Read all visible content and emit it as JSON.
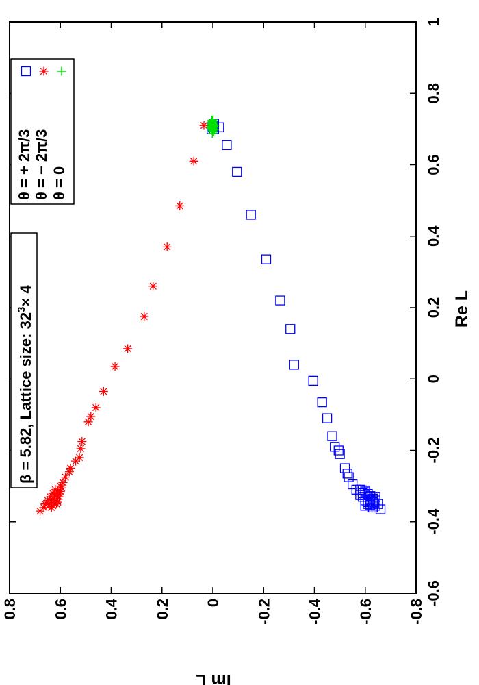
{
  "chart_data": {
    "type": "scatter",
    "orientation": "rotated-90-ccw",
    "xlabel": "Re L",
    "ylabel": "Im L",
    "xlim": [
      -0.6,
      1.0
    ],
    "ylim": [
      -0.8,
      0.8
    ],
    "xticks": [
      -0.6,
      -0.4,
      -0.2,
      0,
      0.2,
      0.4,
      0.6,
      0.8,
      1
    ],
    "yticks": [
      -0.8,
      -0.6,
      -0.4,
      -0.2,
      0,
      0.2,
      0.4,
      0.6,
      0.8
    ],
    "xtick_labels": [
      "-0.6",
      "-0.4",
      "-0.2",
      "0",
      "0.2",
      "0.4",
      "0.6",
      "0.8",
      "1"
    ],
    "ytick_labels": [
      "-0.8",
      "-0.6",
      "-0.4",
      "-0.2",
      "0",
      "0.2",
      "0.4",
      "0.6",
      "0.8"
    ],
    "annotation": {
      "prefix": "β = 5.82, Lattice size: 32",
      "sup": "3",
      "suffix": "× 4"
    },
    "legend_position": "top-right",
    "series": [
      {
        "name": "θ = + 2π/3",
        "marker": "square",
        "color": "#0000ff",
        "points": [
          [
            -0.365,
            -0.66
          ],
          [
            -0.355,
            -0.64
          ],
          [
            -0.35,
            -0.65
          ],
          [
            -0.345,
            -0.63
          ],
          [
            -0.34,
            -0.64
          ],
          [
            -0.338,
            -0.62
          ],
          [
            -0.335,
            -0.63
          ],
          [
            -0.33,
            -0.61
          ],
          [
            -0.328,
            -0.62
          ],
          [
            -0.325,
            -0.6
          ],
          [
            -0.322,
            -0.61
          ],
          [
            -0.32,
            -0.59
          ],
          [
            -0.318,
            -0.6
          ],
          [
            -0.315,
            -0.6
          ],
          [
            -0.312,
            -0.59
          ],
          [
            -0.31,
            -0.58
          ],
          [
            -0.33,
            -0.64
          ],
          [
            -0.345,
            -0.61
          ],
          [
            -0.352,
            -0.62
          ],
          [
            -0.34,
            -0.6
          ],
          [
            -0.36,
            -0.63
          ],
          [
            -0.355,
            -0.6
          ],
          [
            -0.35,
            -0.61
          ],
          [
            -0.325,
            -0.58
          ],
          [
            -0.33,
            -0.59
          ],
          [
            -0.342,
            -0.62
          ],
          [
            -0.348,
            -0.635
          ],
          [
            -0.31,
            -0.565
          ],
          [
            -0.295,
            -0.55
          ],
          [
            -0.275,
            -0.535
          ],
          [
            -0.265,
            -0.53
          ],
          [
            -0.25,
            -0.52
          ],
          [
            -0.21,
            -0.5
          ],
          [
            -0.2,
            -0.495
          ],
          [
            -0.19,
            -0.48
          ],
          [
            -0.16,
            -0.47
          ],
          [
            -0.11,
            -0.45
          ],
          [
            -0.065,
            -0.43
          ],
          [
            -0.005,
            -0.395
          ],
          [
            0.04,
            -0.32
          ],
          [
            0.14,
            -0.305
          ],
          [
            0.22,
            -0.265
          ],
          [
            0.335,
            -0.21
          ],
          [
            0.46,
            -0.15
          ],
          [
            0.58,
            -0.095
          ],
          [
            0.655,
            -0.055
          ],
          [
            0.705,
            -0.025
          ],
          [
            0.7,
            -0.005
          ],
          [
            0.705,
            0.0
          ],
          [
            0.71,
            0.0
          ],
          [
            0.715,
            -0.005
          ],
          [
            0.7,
            0.005
          ]
        ]
      },
      {
        "name": "θ = − 2π/3",
        "marker": "star",
        "color": "#ff0000",
        "points": [
          [
            -0.37,
            0.68
          ],
          [
            -0.36,
            0.665
          ],
          [
            -0.355,
            0.645
          ],
          [
            -0.35,
            0.66
          ],
          [
            -0.345,
            0.635
          ],
          [
            -0.34,
            0.65
          ],
          [
            -0.335,
            0.625
          ],
          [
            -0.33,
            0.64
          ],
          [
            -0.325,
            0.62
          ],
          [
            -0.32,
            0.63
          ],
          [
            -0.318,
            0.61
          ],
          [
            -0.315,
            0.6
          ],
          [
            -0.31,
            0.62
          ],
          [
            -0.305,
            0.595
          ],
          [
            -0.3,
            0.6
          ],
          [
            -0.34,
            0.62
          ],
          [
            -0.345,
            0.61
          ],
          [
            -0.33,
            0.605
          ],
          [
            -0.355,
            0.63
          ],
          [
            -0.35,
            0.615
          ],
          [
            -0.32,
            0.605
          ],
          [
            -0.36,
            0.635
          ],
          [
            -0.338,
            0.63
          ],
          [
            -0.328,
            0.615
          ],
          [
            -0.29,
            0.59
          ],
          [
            -0.275,
            0.58
          ],
          [
            -0.26,
            0.565
          ],
          [
            -0.25,
            0.56
          ],
          [
            -0.23,
            0.54
          ],
          [
            -0.22,
            0.525
          ],
          [
            -0.195,
            0.52
          ],
          [
            -0.175,
            0.515
          ],
          [
            -0.12,
            0.49
          ],
          [
            -0.105,
            0.48
          ],
          [
            -0.08,
            0.46
          ],
          [
            -0.035,
            0.43
          ],
          [
            0.035,
            0.385
          ],
          [
            0.085,
            0.335
          ],
          [
            0.175,
            0.27
          ],
          [
            0.26,
            0.235
          ],
          [
            0.37,
            0.18
          ],
          [
            0.485,
            0.13
          ],
          [
            0.61,
            0.075
          ],
          [
            0.71,
            0.035
          ]
        ]
      },
      {
        "name": "θ = 0",
        "marker": "plus",
        "color": "#00e000",
        "points": [
          [
            0.695,
            0.0
          ],
          [
            0.7,
            0.005
          ],
          [
            0.705,
            -0.005
          ],
          [
            0.71,
            0.0
          ],
          [
            0.715,
            0.005
          ],
          [
            0.72,
            0.0
          ],
          [
            0.698,
            -0.006
          ],
          [
            0.703,
            0.006
          ],
          [
            0.708,
            -0.003
          ],
          [
            0.712,
            0.004
          ],
          [
            0.717,
            -0.004
          ],
          [
            0.722,
            0.002
          ],
          [
            0.726,
            -0.001
          ],
          [
            0.688,
            0.002
          ],
          [
            0.692,
            -0.003
          ],
          [
            0.706,
            0.008
          ],
          [
            0.711,
            -0.008
          ],
          [
            0.7,
            -0.002
          ],
          [
            0.714,
            0.002
          ],
          [
            0.719,
            0.006
          ],
          [
            0.702,
            0.001
          ],
          [
            0.708,
            0.003
          ],
          [
            0.713,
            -0.001
          ],
          [
            0.697,
            0.004
          ],
          [
            0.724,
            0.004
          ]
        ]
      }
    ]
  }
}
